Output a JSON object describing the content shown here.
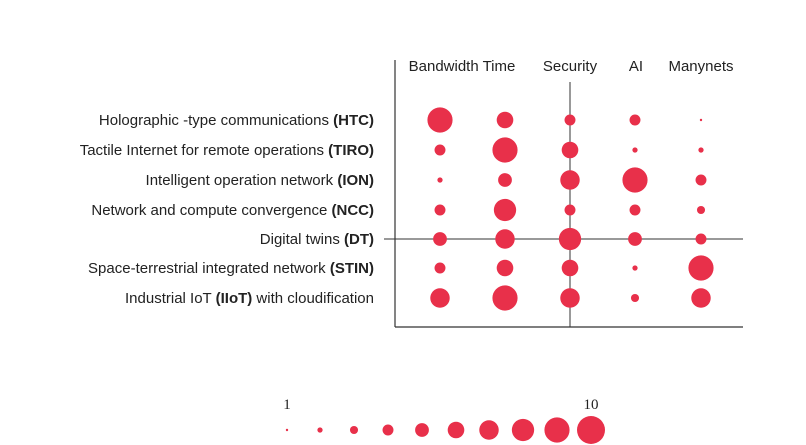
{
  "colors": {
    "bubble": "#e8304a",
    "axis": "#333333",
    "text": "#222222"
  },
  "chart_data": {
    "type": "bubble-matrix",
    "title": "",
    "columns": [
      "Bandwidth",
      "Time",
      "Security",
      "AI",
      "Manynets"
    ],
    "rows": [
      {
        "pre": "Holographic -type communications ",
        "abbr": "(HTC)",
        "post": ""
      },
      {
        "pre": "Tactile Internet for remote operations ",
        "abbr": "(TIRO)",
        "post": ""
      },
      {
        "pre": "Intelligent operation network ",
        "abbr": "(ION)",
        "post": ""
      },
      {
        "pre": "Network and compute convergence ",
        "abbr": "(NCC)",
        "post": ""
      },
      {
        "pre": "Digital twins ",
        "abbr": "(DT)",
        "post": ""
      },
      {
        "pre": "Space-terrestrial integrated network ",
        "abbr": "(STIN)",
        "post": ""
      },
      {
        "pre": "Industrial IoT ",
        "abbr": "(IIoT)",
        "post": " with cloudification"
      }
    ],
    "values": [
      [
        9,
        6,
        4,
        4,
        1
      ],
      [
        4,
        9,
        6,
        2,
        2
      ],
      [
        2,
        5,
        7,
        9,
        4
      ],
      [
        4,
        8,
        4,
        4,
        3
      ],
      [
        5,
        7,
        8,
        5,
        4
      ],
      [
        4,
        6,
        6,
        2,
        9
      ],
      [
        7,
        9,
        7,
        3,
        7
      ]
    ],
    "scale": {
      "min": 1,
      "max": 10,
      "steps": [
        1,
        2,
        3,
        4,
        5,
        6,
        7,
        8,
        9,
        10
      ],
      "min_label": "1",
      "max_label": "10"
    }
  }
}
